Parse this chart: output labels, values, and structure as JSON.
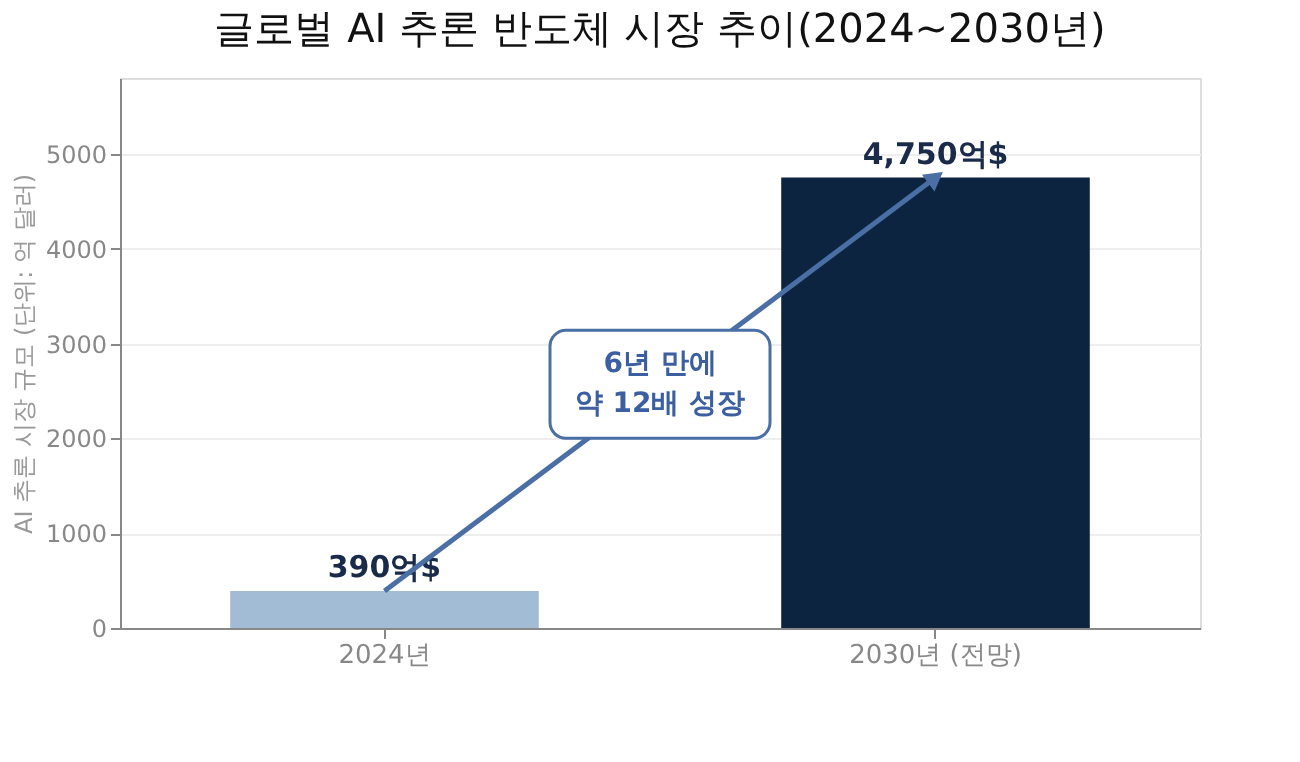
{
  "chart_data": {
    "type": "bar",
    "title": "글로벌 AI 추론 반도체 시장 추이(2024~2030년)",
    "ylabel": "AI 추론 시장 규모 (단위: 억 달러)",
    "categories": [
      "2024년",
      "2030년 (전망)"
    ],
    "values": [
      390,
      4750
    ],
    "colors": [
      "#a3bcd6",
      "#0d2440"
    ],
    "value_labels": [
      "390억$",
      "4,750억$"
    ],
    "annotations": [
      "6년 만에\n약 12배 성장"
    ],
    "ylim": [
      0,
      5800
    ],
    "yticks": [
      0,
      1000,
      2000,
      3000,
      4000,
      5000
    ],
    "grid": "y"
  }
}
